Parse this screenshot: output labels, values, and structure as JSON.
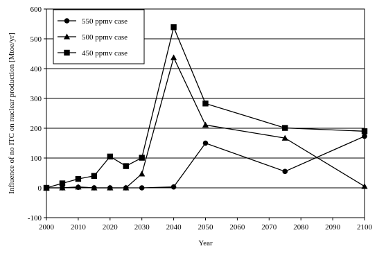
{
  "chart_data": {
    "type": "line",
    "title": "",
    "xlabel": "Year",
    "ylabel": "Influence of no ITC on nuclear production [Mtoe/yr]",
    "xlim": [
      2000,
      2100
    ],
    "ylim": [
      -100,
      600
    ],
    "x_ticks": [
      2000,
      2010,
      2020,
      2030,
      2040,
      2050,
      2060,
      2070,
      2080,
      2090,
      2100
    ],
    "y_ticks": [
      -100,
      0,
      100,
      200,
      300,
      400,
      500,
      600
    ],
    "grid": "horizontal",
    "legend_position": "top-left",
    "series": [
      {
        "name": "550 ppmv case",
        "marker": "circle",
        "x": [
          2000,
          2005,
          2010,
          2015,
          2020,
          2025,
          2030,
          2040,
          2050,
          2075,
          2100
        ],
        "y": [
          0,
          0,
          2,
          0,
          0,
          0,
          0,
          3,
          150,
          55,
          173
        ]
      },
      {
        "name": "500 ppmv case",
        "marker": "triangle",
        "x": [
          2000,
          2005,
          2010,
          2015,
          2020,
          2025,
          2030,
          2040,
          2050,
          2075,
          2100
        ],
        "y": [
          0,
          0,
          3,
          0,
          0,
          0,
          47,
          437,
          211,
          167,
          5
        ]
      },
      {
        "name": "450 ppmv case",
        "marker": "square",
        "x": [
          2000,
          2005,
          2010,
          2015,
          2020,
          2025,
          2030,
          2040,
          2050,
          2075,
          2100
        ],
        "y": [
          0,
          15,
          30,
          40,
          105,
          73,
          101,
          539,
          283,
          201,
          190
        ]
      }
    ]
  }
}
